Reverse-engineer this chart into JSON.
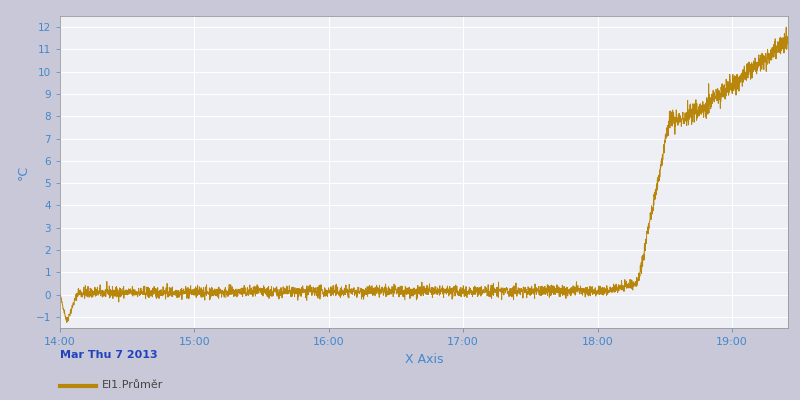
{
  "title": "",
  "ylabel": "°C",
  "xlabel": "X Axis",
  "date_label": "Mar Thu 7 2013",
  "legend_label": "El1.Průměr",
  "line_color": "#B8860B",
  "fig_bg_color": "#C8C8D8",
  "plot_bg_color": "#EEEEF5",
  "grid_color": "#FFFFFF",
  "ylim": [
    -1.5,
    12.5
  ],
  "yticks": [
    -1,
    0,
    1,
    2,
    3,
    4,
    5,
    6,
    7,
    8,
    9,
    10,
    11,
    12
  ],
  "xlim_min": 0,
  "xlim_max": 325,
  "xtick_labels": [
    "14:00",
    "15:00",
    "16:00",
    "17:00",
    "18:00",
    "19:00"
  ],
  "xtick_positions": [
    0,
    60,
    120,
    180,
    240,
    300
  ],
  "tick_color": "#4488CC",
  "label_color": "#4488CC",
  "date_color": "#2244BB",
  "legend_text_color": "#444444"
}
